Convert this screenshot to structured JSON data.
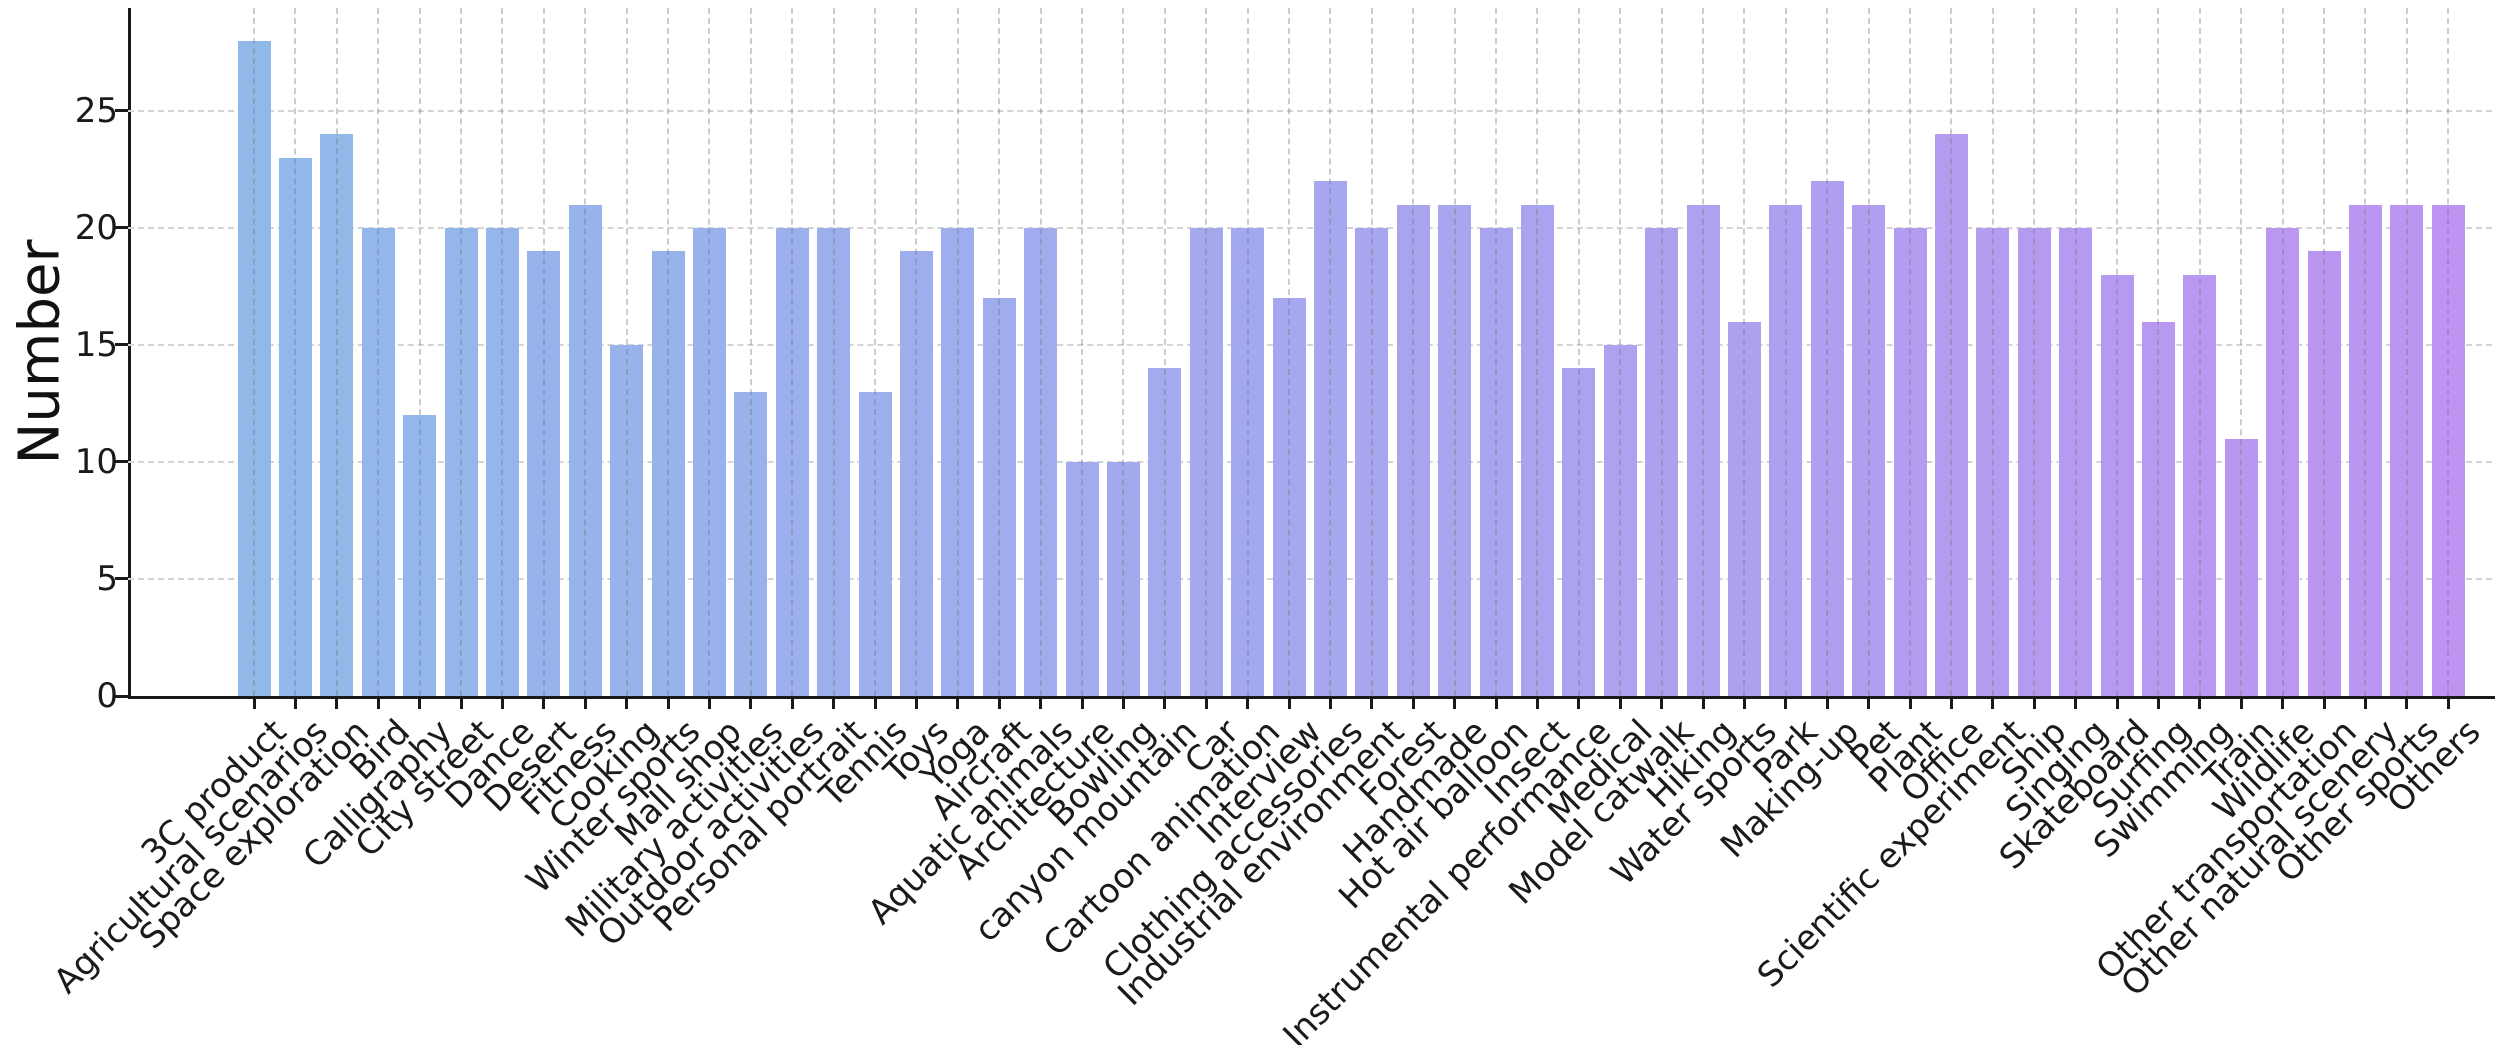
{
  "figure": {
    "background": "#ffffff"
  },
  "chart_data": {
    "type": "bar",
    "title": "",
    "xlabel": "",
    "ylabel": "Number",
    "legend": "none",
    "grid": "dashed",
    "ylim": [
      0,
      29.4
    ],
    "yticks": [
      0,
      5,
      10,
      15,
      20,
      25
    ],
    "bar_color_start": "#90b9ea",
    "bar_color_end": "#bd94f2",
    "grid_color": "#d4d4d4",
    "axis_color": "#1a1a1a",
    "categories": [
      "3C product",
      "Agricultural scenarios",
      "Space exploration",
      "Bird",
      "Calligraphy",
      "City street",
      "Dance",
      "Desert",
      "Fitness",
      "Cooking",
      "Winter sports",
      "Mall shop",
      "Military activities",
      "Outdoor activities",
      "Personal portrait",
      "Tennis",
      "Toys",
      "Yoga",
      "Aircraft",
      "Aquatic animals",
      "Architecture",
      "Bowling",
      "canyon mountain",
      "Car",
      "Cartoon animation",
      "Interview",
      "Clothing accessories",
      "Industrial environment",
      "Forest",
      "Handmade",
      "Hot air balloon",
      "Insect",
      "Instrumental performance",
      "Medical",
      "Model catwalk",
      "Hiking",
      "Water sports",
      "Park",
      "Making-up",
      "Pet",
      "Plant",
      "Office",
      "Scientific experiment",
      "Ship",
      "Singing",
      "Skateboard",
      "Surfing",
      "Swimming",
      "Train",
      "Wildlife",
      "Other transportation",
      "Other natural scenery",
      "Other sports",
      "Others"
    ],
    "values": [
      28,
      23,
      24,
      20,
      12,
      20,
      20,
      19,
      21,
      15,
      19,
      20,
      13,
      20,
      20,
      13,
      19,
      20,
      17,
      20,
      10,
      10,
      14,
      20,
      20,
      17,
      22,
      20,
      21,
      21,
      20,
      21,
      14,
      15,
      20,
      21,
      16,
      21,
      22,
      21,
      20,
      24,
      20,
      20,
      20,
      18,
      16,
      18,
      11,
      20,
      19,
      21,
      21,
      21
    ]
  }
}
